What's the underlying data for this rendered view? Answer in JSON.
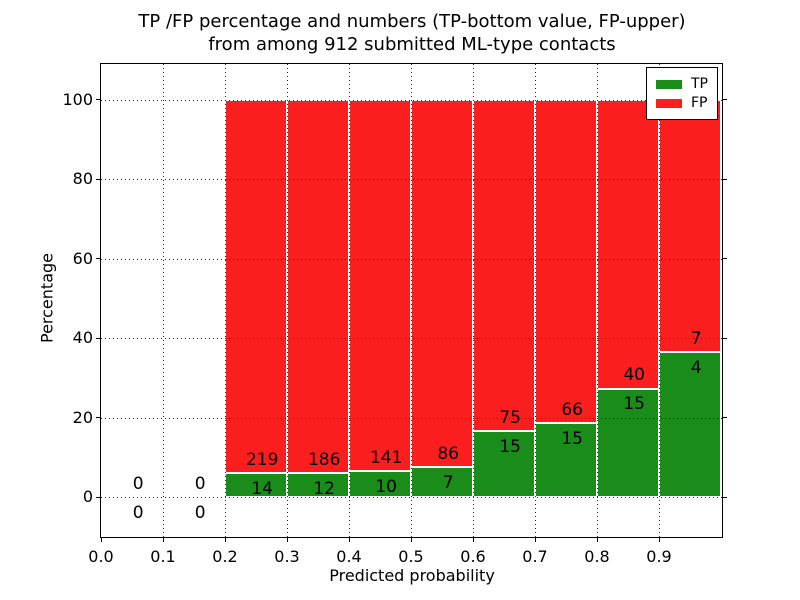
{
  "figure": {
    "title_line1": "TP /FP percentage and numbers (TP-bottom value, FP-upper)",
    "title_line2": "from among 912 submitted ML-type contacts",
    "xlabel": "Predicted probability",
    "ylabel": "Percentage",
    "background_color": "#ffffff"
  },
  "legend": {
    "position": "upper right",
    "items": [
      {
        "label": "TP",
        "color": "#1a8c1a"
      },
      {
        "label": "FP",
        "color": "#fa1e1e"
      }
    ]
  },
  "chart_data": {
    "type": "bar",
    "stacked": true,
    "normalized": "each 0.1-wide bin scaled to 100%",
    "title": "TP /FP percentage and numbers (TP-bottom value, FP-upper) from among 912 submitted ML-type contacts",
    "xlabel": "Predicted probability",
    "ylabel": "Percentage",
    "total_contacts": 912,
    "bin_width": 0.1,
    "bin_starts": [
      0.0,
      0.1,
      0.2,
      0.3,
      0.4,
      0.5,
      0.6,
      0.7,
      0.8,
      0.9
    ],
    "series": [
      {
        "name": "TP",
        "color": "#1a8c1a",
        "counts": [
          0,
          0,
          14,
          12,
          10,
          7,
          15,
          15,
          15,
          4
        ]
      },
      {
        "name": "FP",
        "color": "#fa1e1e",
        "counts": [
          0,
          0,
          219,
          186,
          141,
          86,
          75,
          66,
          40,
          7
        ]
      }
    ],
    "tp_percent_of_bin": [
      0,
      0,
      6.0,
      6.1,
      6.6,
      7.5,
      16.7,
      18.5,
      27.3,
      36.4
    ],
    "xtick_labels": [
      "0.0",
      "0.1",
      "0.2",
      "0.3",
      "0.4",
      "0.5",
      "0.6",
      "0.7",
      "0.8",
      "0.9"
    ],
    "ytick_values": [
      0,
      20,
      40,
      60,
      80,
      100
    ],
    "ytick_labels": [
      "0",
      "20",
      "40",
      "60",
      "80",
      "100"
    ],
    "xlim": [
      0.0,
      1.005
    ],
    "ylim": [
      -10.5,
      109.2
    ],
    "grid": "dotted black, both axes, drawn above bars",
    "bar_edge_color": "#ffffff",
    "legend_position": "upper right"
  }
}
